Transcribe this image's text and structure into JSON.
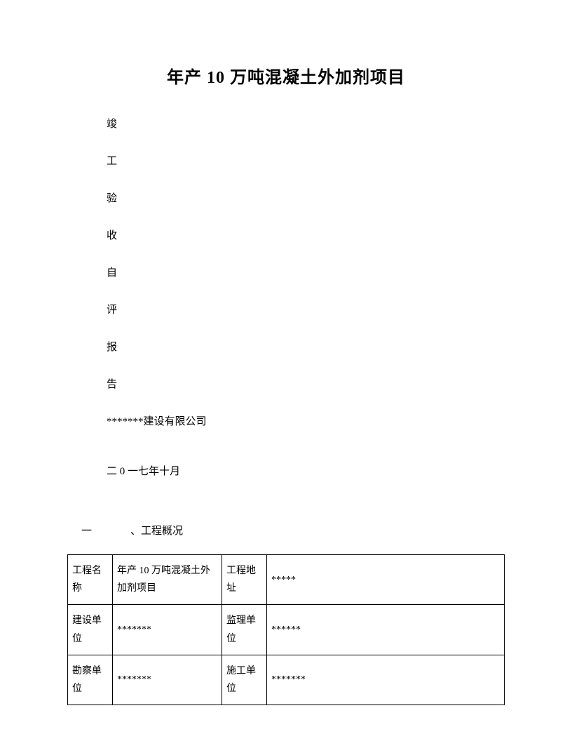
{
  "title": "年产 10 万吨混凝土外加剂项目",
  "subtitle_chars": [
    "竣",
    "工",
    "验",
    "收",
    "自",
    "评",
    "报",
    "告"
  ],
  "company": "*******建设有限公司",
  "date": "二 0 一七年十月",
  "section": {
    "number": "一",
    "label": "、工程概况"
  },
  "table": {
    "rows": [
      {
        "label1": "工程名称",
        "val1": "年产 10 万吨混凝土外加剂项目",
        "label2": "工程地址",
        "val2": "*****"
      },
      {
        "label1": "建设单位",
        "val1": "*******",
        "label2": "监理单位",
        "val2": "******"
      },
      {
        "label1": "勘察单位",
        "val1": "*******",
        "label2": "施工单位",
        "val2": "*******"
      }
    ]
  },
  "style": {
    "page_bg": "#ffffff",
    "text_color": "#000000",
    "border_color": "#000000",
    "title_fontsize": 24,
    "body_fontsize": 15,
    "table_fontsize": 14
  }
}
